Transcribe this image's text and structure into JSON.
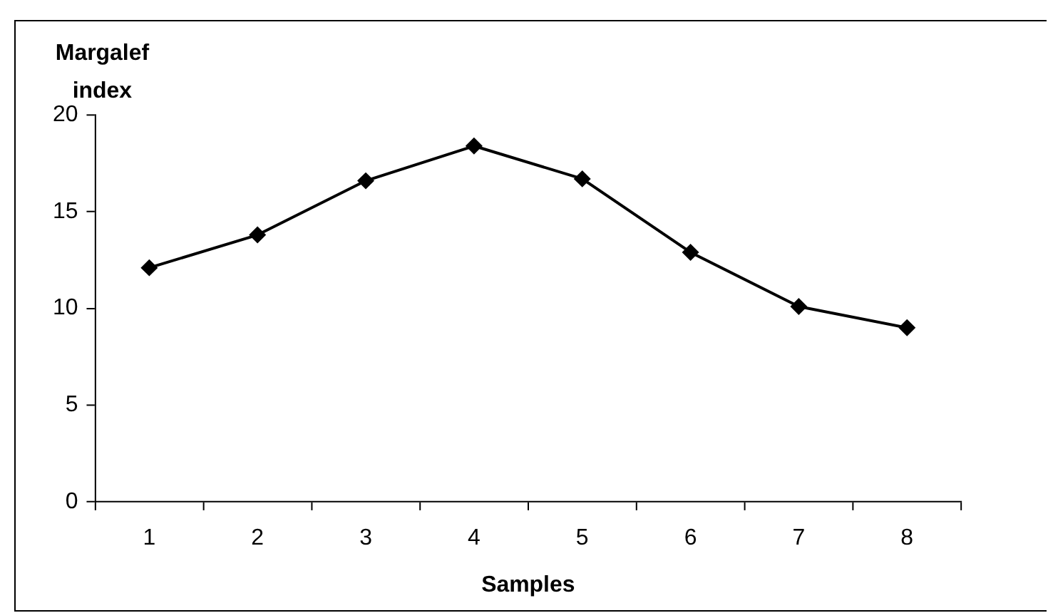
{
  "chart_data": {
    "type": "line",
    "xlabel": "Samples",
    "ylabel": "Margalef index",
    "categories": [
      "1",
      "2",
      "3",
      "4",
      "5",
      "6",
      "7",
      "8"
    ],
    "series": [
      {
        "color": "#000000",
        "values": [
          12.1,
          13.8,
          16.6,
          18.4,
          16.7,
          12.9,
          10.1,
          9.0
        ]
      }
    ],
    "ylim": [
      0,
      20
    ],
    "yticks": [
      0,
      5,
      10,
      15,
      20
    ],
    "grid": false,
    "legend": false,
    "marker": "diamond",
    "line_style": "solid"
  }
}
